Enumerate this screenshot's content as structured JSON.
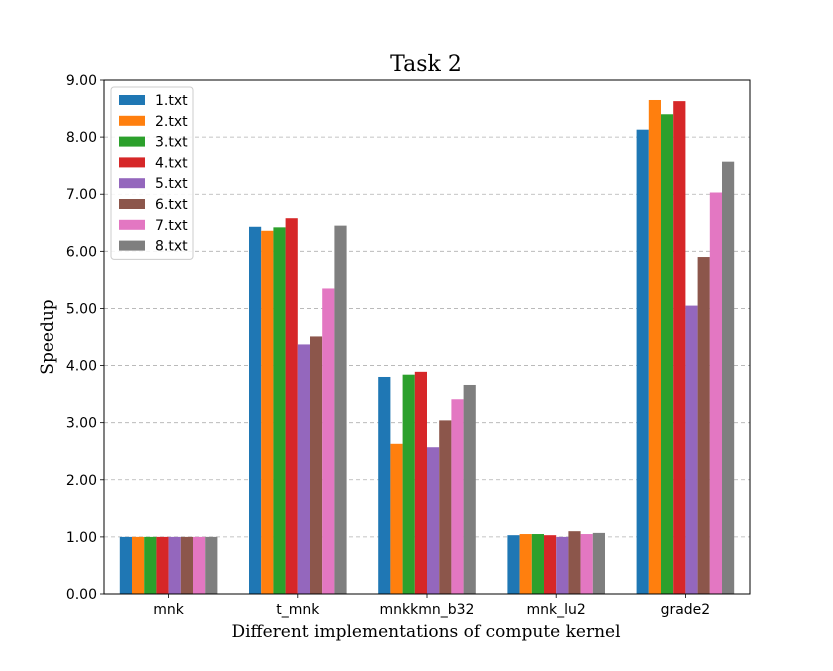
{
  "chart_data": {
    "type": "bar",
    "title": "Task 2",
    "xlabel": "Different implementations of compute kernel",
    "ylabel": "Speedup",
    "ylim": [
      0,
      9
    ],
    "yticks": [
      "0.00",
      "1.00",
      "2.00",
      "3.00",
      "4.00",
      "5.00",
      "6.00",
      "7.00",
      "8.00",
      "9.00"
    ],
    "grid": "y-dashed",
    "legend_position": "top-left",
    "categories": [
      "mnk",
      "t_mnk",
      "mnkkmn_b32",
      "mnk_lu2",
      "grade2"
    ],
    "series": [
      {
        "name": "1.txt",
        "color": "#1f77b4",
        "values": [
          1.0,
          6.43,
          3.8,
          1.03,
          8.13
        ]
      },
      {
        "name": "2.txt",
        "color": "#ff7f0e",
        "values": [
          1.0,
          6.36,
          2.63,
          1.05,
          8.65
        ]
      },
      {
        "name": "3.txt",
        "color": "#2ca02c",
        "values": [
          1.0,
          6.42,
          3.84,
          1.05,
          8.4
        ]
      },
      {
        "name": "4.txt",
        "color": "#d62728",
        "values": [
          1.0,
          6.58,
          3.89,
          1.03,
          8.63
        ]
      },
      {
        "name": "5.txt",
        "color": "#9467bd",
        "values": [
          1.0,
          4.37,
          2.57,
          1.0,
          5.05
        ]
      },
      {
        "name": "6.txt",
        "color": "#8c564b",
        "values": [
          1.0,
          4.51,
          3.04,
          1.1,
          5.9
        ]
      },
      {
        "name": "7.txt",
        "color": "#e377c2",
        "values": [
          1.0,
          5.35,
          3.41,
          1.05,
          7.03
        ]
      },
      {
        "name": "8.txt",
        "color": "#7f7f7f",
        "values": [
          1.0,
          6.45,
          3.66,
          1.07,
          7.57
        ]
      }
    ]
  }
}
